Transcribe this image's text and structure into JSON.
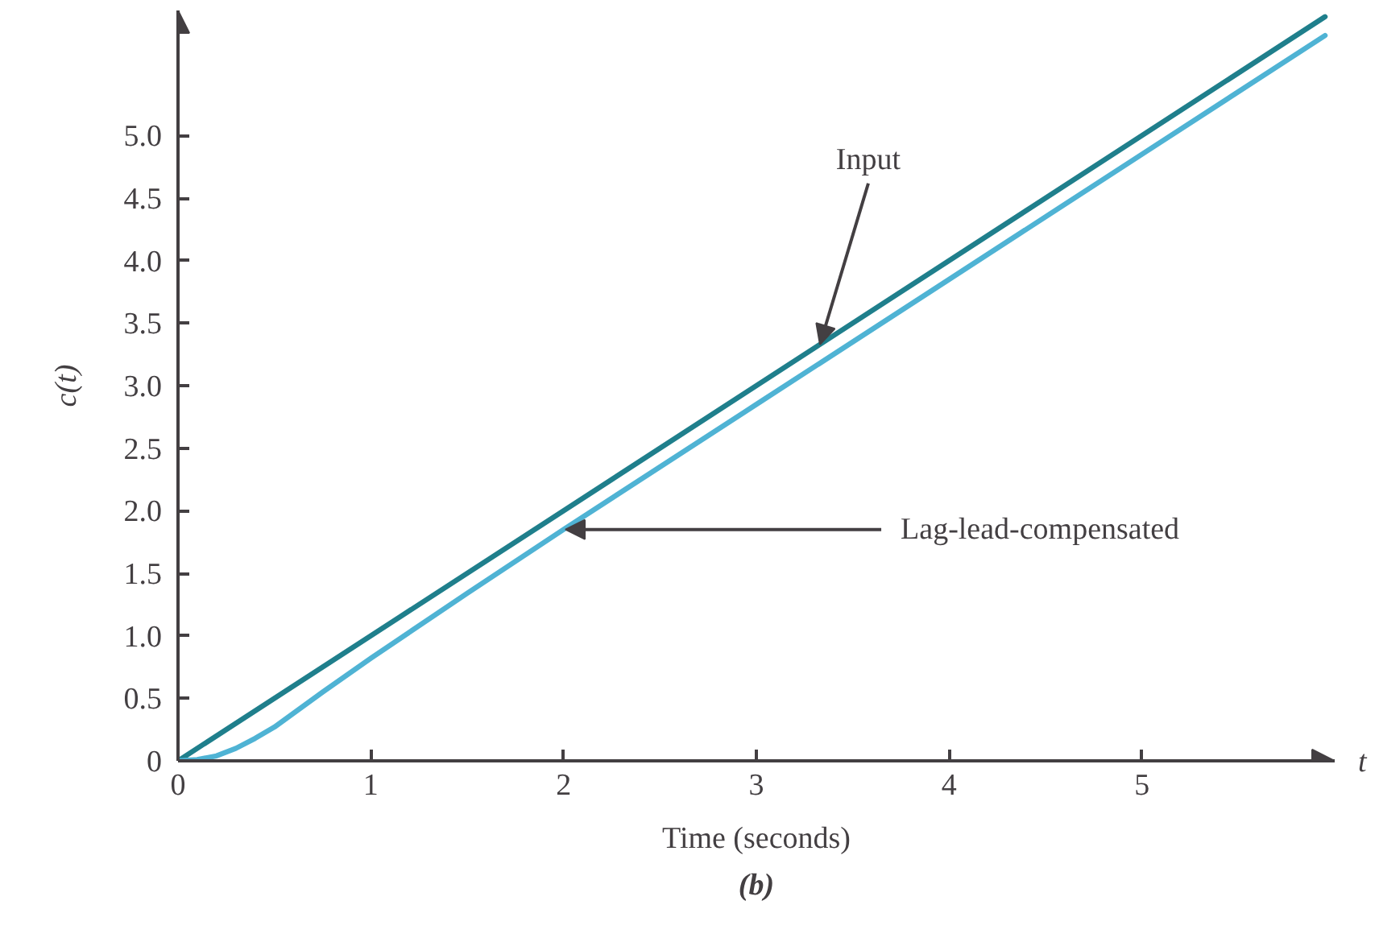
{
  "chart_data": {
    "type": "line",
    "xlabel": "Time (seconds)",
    "ylabel": "c(t)",
    "xlim": [
      0,
      6
    ],
    "ylim": [
      0,
      6
    ],
    "xticks": [
      0,
      1,
      2,
      3,
      4,
      5
    ],
    "yticks": [
      0,
      0.5,
      {
        "value": 1,
        "label": "1.0"
      },
      1.5,
      {
        "value": 2,
        "label": "2.0"
      },
      2.5,
      {
        "value": 3,
        "label": "3.0"
      },
      3.5,
      {
        "value": 4,
        "label": "4.0"
      },
      4.5,
      {
        "value": 5,
        "label": "5.0"
      }
    ],
    "series": [
      {
        "color": "#1f7f8c",
        "x": [
          0,
          5.95
        ],
        "values": [
          0,
          5.95
        ]
      },
      {
        "color": "#4fb3d4",
        "x": [
          0,
          0.1,
          0.2,
          0.3,
          0.4,
          0.5,
          0.75,
          1,
          1.5,
          2,
          3,
          4,
          5,
          5.95
        ],
        "values": [
          0,
          0.01,
          0.04,
          0.1,
          0.18,
          0.27,
          0.55,
          0.82,
          1.34,
          1.85,
          2.85,
          3.85,
          4.85,
          5.8
        ]
      }
    ],
    "annotations": [
      {
        "text": "Input",
        "x": 3.33,
        "y": 3.33
      },
      {
        "text": "Lag-lead-compensated",
        "x": 2.01,
        "y": 1.85
      },
      "t",
      "(b)"
    ]
  }
}
